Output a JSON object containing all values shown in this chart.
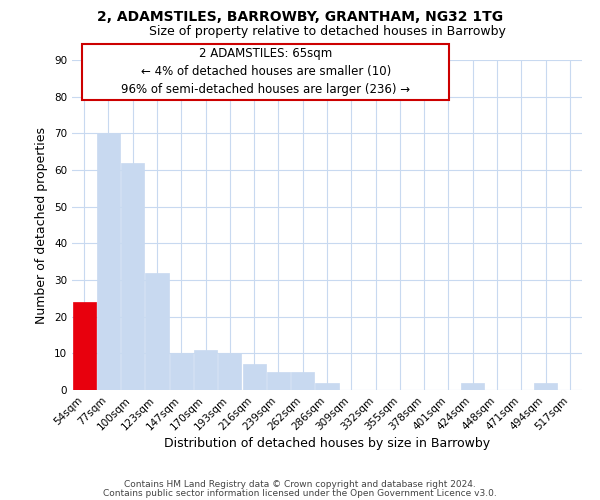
{
  "title": "2, ADAMSTILES, BARROWBY, GRANTHAM, NG32 1TG",
  "subtitle": "Size of property relative to detached houses in Barrowby",
  "xlabel": "Distribution of detached houses by size in Barrowby",
  "ylabel": "Number of detached properties",
  "categories": [
    "54sqm",
    "77sqm",
    "100sqm",
    "123sqm",
    "147sqm",
    "170sqm",
    "193sqm",
    "216sqm",
    "239sqm",
    "262sqm",
    "286sqm",
    "309sqm",
    "332sqm",
    "355sqm",
    "378sqm",
    "401sqm",
    "424sqm",
    "448sqm",
    "471sqm",
    "494sqm",
    "517sqm"
  ],
  "values": [
    24,
    70,
    62,
    32,
    10,
    11,
    10,
    7,
    5,
    5,
    2,
    0,
    0,
    0,
    0,
    0,
    2,
    0,
    0,
    2,
    0
  ],
  "bar_color": "#c8d9f0",
  "highlight_bar_color": "#e8000d",
  "highlight_index": 0,
  "ylim": [
    0,
    90
  ],
  "yticks": [
    0,
    10,
    20,
    30,
    40,
    50,
    60,
    70,
    80,
    90
  ],
  "annotation_line1": "2 ADAMSTILES: 65sqm",
  "annotation_line2": "← 4% of detached houses are smaller (10)",
  "annotation_line3": "96% of semi-detached houses are larger (236) →",
  "footer_line1": "Contains HM Land Registry data © Crown copyright and database right 2024.",
  "footer_line2": "Contains public sector information licensed under the Open Government Licence v3.0.",
  "background_color": "#ffffff",
  "grid_color": "#c8d9f0",
  "title_fontsize": 10,
  "subtitle_fontsize": 9,
  "axis_label_fontsize": 9,
  "tick_fontsize": 7.5,
  "annotation_fontsize": 8.5,
  "footer_fontsize": 6.5
}
